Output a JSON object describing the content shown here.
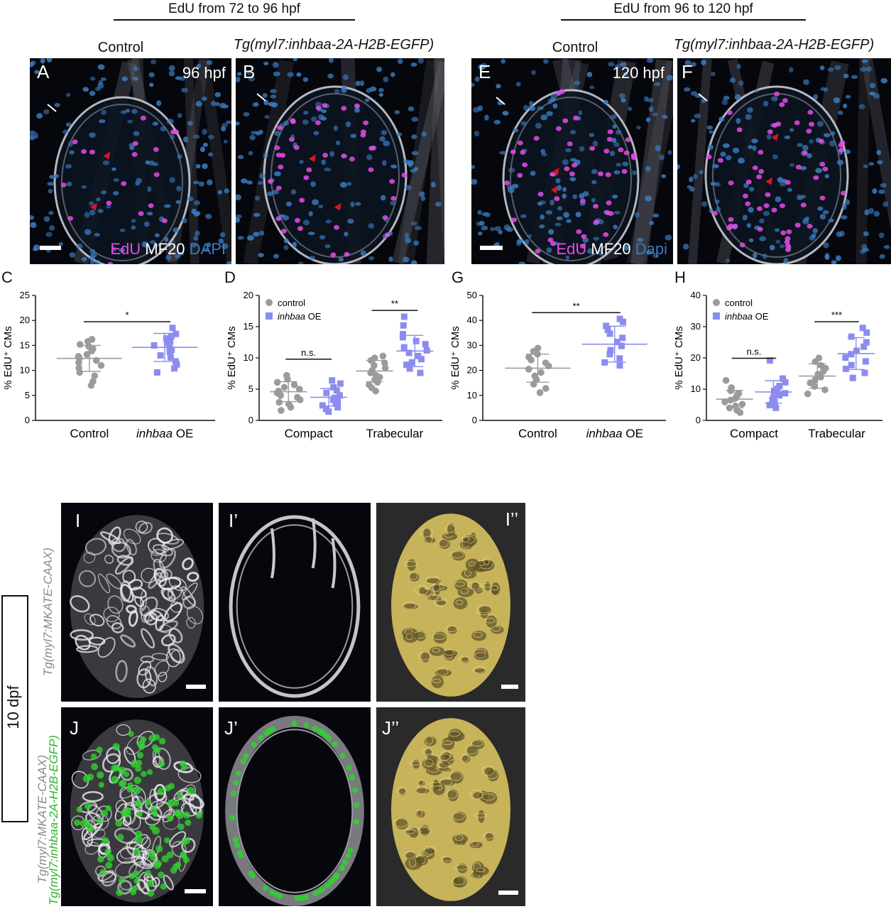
{
  "headers": {
    "left": "EdU from 72 to 96 hpf",
    "right": "EdU from 96 to 120 hpf"
  },
  "columns": {
    "control": "Control",
    "transgenic": "Tg(myl7:inhbaa-2A-H2B-EGFP)"
  },
  "panels_top": {
    "A": "A",
    "B": "B",
    "E": "E",
    "F": "F",
    "time_A": "96 hpf",
    "time_E": "120 hpf"
  },
  "stain_A": {
    "edu": "EdU",
    "mf20": "MF20",
    "dapi": "DAPI"
  },
  "stain_E": {
    "edu": "EdU",
    "mf20": "MF20",
    "dapi": "Dapi"
  },
  "colors": {
    "control": "#9b9b9b",
    "oe": "#8c8cf0",
    "edu": "#e64be6",
    "dapi": "#3a7bbf",
    "gfp": "#2fd12f",
    "surface": "#c7b35a"
  },
  "panel_letters": {
    "C": "C",
    "D": "D",
    "G": "G",
    "H": "H"
  },
  "chart_data": [
    {
      "type": "scatter",
      "panel": "C",
      "ylabel": "% EdU⁺ CMs",
      "ylim": [
        0,
        25
      ],
      "yticks": [
        0,
        5,
        10,
        15,
        20,
        25
      ],
      "categories": [
        "Control",
        "inhbaa OE"
      ],
      "series": [
        {
          "values": [
            16.2,
            15.8,
            15.2,
            14.8,
            14.3,
            13.9,
            13.2,
            12.8,
            12.4,
            12.0,
            11.6,
            11.0,
            10.5,
            9.6,
            8.9,
            7.8,
            7.0
          ]
        },
        {
          "values": [
            18.5,
            17.3,
            16.8,
            16.4,
            15.9,
            15.5,
            15.0,
            14.6,
            14.1,
            13.7,
            13.0,
            12.6,
            11.8,
            11.2,
            10.4,
            9.6
          ]
        }
      ],
      "means": [
        12.4,
        14.6
      ],
      "sd": [
        2.6,
        2.8
      ],
      "significance": [
        {
          "between": [
            0,
            1
          ],
          "label": "*"
        }
      ]
    },
    {
      "type": "scatter",
      "panel": "D",
      "ylabel": "% EdU⁺ CMs",
      "ylim": [
        0,
        20
      ],
      "yticks": [
        0,
        5,
        10,
        15,
        20
      ],
      "categories": [
        "Compact",
        "Trabecular"
      ],
      "legend": [
        "control",
        "inhbaa OE"
      ],
      "series": [
        {
          "values": [
            7.2,
            6.6,
            6.1,
            5.7,
            5.3,
            5.0,
            4.7,
            4.4,
            4.0,
            3.7,
            3.3,
            2.9,
            2.6,
            2.1,
            1.6
          ],
          "group": 0
        },
        {
          "values": [
            6.4,
            5.9,
            5.3,
            4.8,
            4.4,
            4.0,
            3.6,
            3.3,
            3.0,
            2.7,
            2.4,
            2.1,
            1.8,
            1.4
          ],
          "group": 0
        },
        {
          "values": [
            10.3,
            10.0,
            9.6,
            9.2,
            8.8,
            8.4,
            8.0,
            7.6,
            7.2,
            6.9,
            6.5,
            6.1,
            5.7,
            5.2,
            4.7
          ],
          "group": 1
        },
        {
          "values": [
            16.6,
            15.2,
            13.8,
            13.3,
            12.7,
            12.2,
            11.7,
            11.2,
            10.8,
            10.3,
            9.8,
            9.3,
            8.9,
            8.3,
            7.6
          ],
          "group": 1
        }
      ],
      "means": [
        4.6,
        3.7,
        7.9,
        11.1
      ],
      "sd": [
        1.6,
        1.4,
        1.7,
        2.5
      ],
      "significance": [
        {
          "between": [
            0,
            1
          ],
          "label": "n.s."
        },
        {
          "between": [
            2,
            3
          ],
          "label": "**"
        }
      ]
    },
    {
      "type": "scatter",
      "panel": "G",
      "ylabel": "% EdU⁺ CMs",
      "ylim": [
        0,
        50
      ],
      "yticks": [
        0,
        10,
        20,
        30,
        40,
        50
      ],
      "categories": [
        "Control",
        "inhbaa OE"
      ],
      "series": [
        {
          "values": [
            28.9,
            27.6,
            26.5,
            25.3,
            24.2,
            23.0,
            21.8,
            20.5,
            19.2,
            17.8,
            16.3,
            14.5,
            12.8,
            11.1
          ]
        },
        {
          "values": [
            40.6,
            39.4,
            37.8,
            36.2,
            34.7,
            33.0,
            31.4,
            29.8,
            28.1,
            26.5,
            24.8,
            23.2,
            22.0
          ]
        }
      ],
      "means": [
        20.9,
        30.5
      ],
      "sd": [
        5.6,
        7.2
      ],
      "significance": [
        {
          "between": [
            0,
            1
          ],
          "label": "**"
        }
      ]
    },
    {
      "type": "scatter",
      "panel": "H",
      "ylabel": "% EdU⁺ CMs",
      "ylim": [
        0,
        40
      ],
      "yticks": [
        0,
        10,
        20,
        30,
        40
      ],
      "categories": [
        "Compact",
        "Trabecular"
      ],
      "legend": [
        "control",
        "inhbaa OE"
      ],
      "series": [
        {
          "values": [
            12.8,
            10.5,
            9.5,
            8.6,
            7.8,
            7.1,
            6.5,
            5.9,
            5.2,
            4.6,
            4.0,
            3.3,
            2.5
          ],
          "group": 0
        },
        {
          "values": [
            19.2,
            13.4,
            12.2,
            11.0,
            10.1,
            9.4,
            8.7,
            8.0,
            7.3,
            6.6,
            5.8,
            4.9,
            4.0
          ],
          "group": 0
        },
        {
          "values": [
            20.0,
            18.8,
            17.6,
            16.7,
            15.7,
            14.8,
            13.9,
            13.0,
            12.0,
            10.9,
            9.8,
            8.5
          ],
          "group": 1
        },
        {
          "values": [
            29.6,
            28.1,
            26.8,
            25.0,
            23.6,
            22.3,
            21.2,
            20.1,
            18.9,
            17.7,
            16.5,
            15.2,
            13.6
          ],
          "group": 1
        }
      ],
      "means": [
        6.8,
        9.1,
        14.2,
        21.4
      ],
      "sd": [
        2.8,
        3.6,
        3.9,
        5.1
      ],
      "significance": [
        {
          "between": [
            0,
            1
          ],
          "label": "n.s."
        },
        {
          "between": [
            2,
            3
          ],
          "label": "***"
        }
      ]
    }
  ],
  "bottom": {
    "dpf": "10 dpf",
    "side_label_1": "Tg(myl7:MKATE-CAAX)",
    "side_label_2a": "Tg(myl7:MKATE-CAAX)",
    "side_label_2b": "Tg(myl7:inhbaa-2A-H2B-EGFP)",
    "I": "I",
    "I1": "I’",
    "I2": "I’’",
    "J": "J",
    "J1": "J’",
    "J2": "J’’"
  }
}
